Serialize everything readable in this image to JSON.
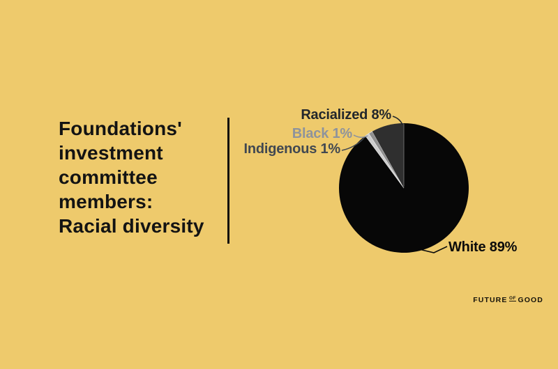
{
  "background": "#eeca6c",
  "title": {
    "text": "Foundations'\ninvestment\ncommittee\nmembers:\nRacial diversity"
  },
  "brand": {
    "word1": "FUTURE",
    "word2": "OF",
    "word3": "GOOD"
  },
  "chart_data": {
    "type": "pie",
    "title": "Foundations' investment committee members: Racial diversity",
    "categories": [
      "White",
      "Indigenous",
      "Black",
      "Racialized"
    ],
    "values": [
      89,
      1,
      1,
      8
    ],
    "unit": "%",
    "start_angle": "12-o'clock",
    "direction": "clockwise",
    "slice_colors": [
      "#070707",
      "#cccccc",
      "#8f8f8f",
      "#2f2f2f"
    ],
    "slice_separator_color": "#e9e9e9",
    "legend_position": "callout-labels",
    "callouts": [
      {
        "category": "Racialized",
        "value": 8,
        "text": "Racialized 8%",
        "color": "#22262b"
      },
      {
        "category": "Black",
        "value": 1,
        "text": "Black 1%",
        "color": "#8e939c"
      },
      {
        "category": "Indigenous",
        "value": 1,
        "text": "Indigenous 1%",
        "color": "#414851"
      },
      {
        "category": "White",
        "value": 89,
        "text": "White 89%",
        "color": "#0b0b0b"
      }
    ]
  }
}
